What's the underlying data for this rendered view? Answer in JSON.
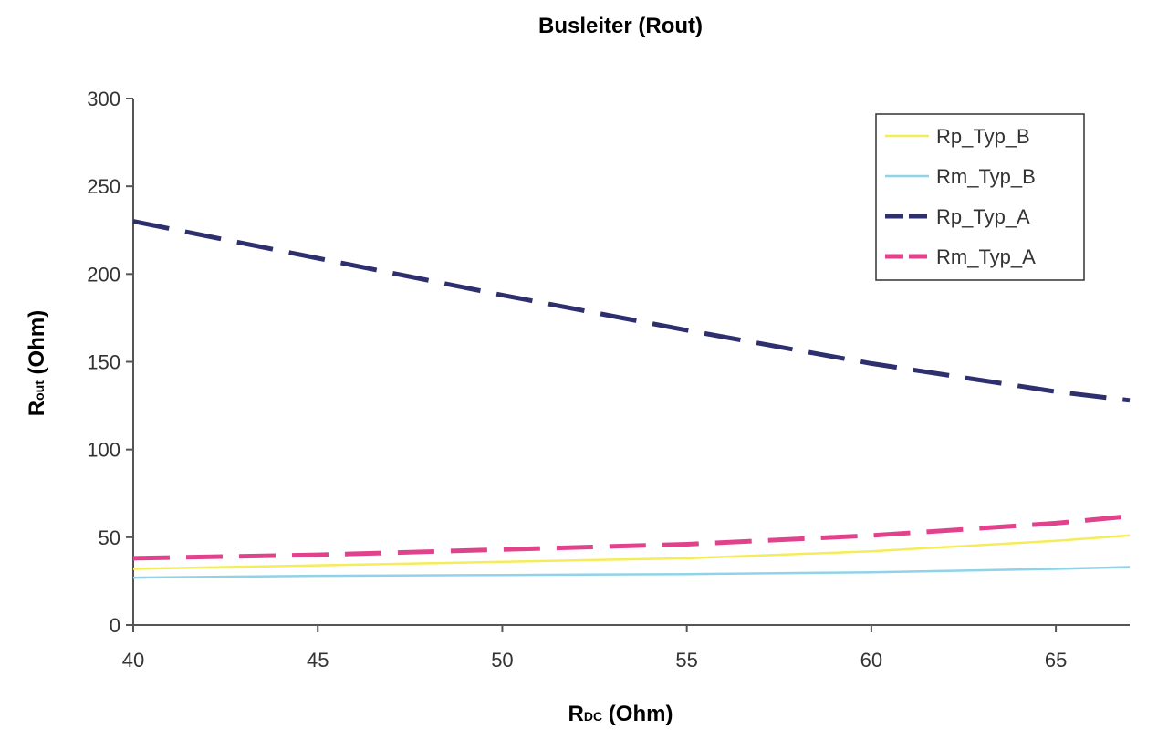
{
  "chart_data": {
    "type": "line",
    "title": "Busleiter (Rout)",
    "xlabel": {
      "main": "R",
      "sub": "DC",
      "rest": " (Ohm)"
    },
    "ylabel": {
      "main": "R",
      "sub": "out",
      "rest": " (Ohm)"
    },
    "xlim": [
      40,
      67
    ],
    "ylim": [
      0,
      300
    ],
    "x_ticks": [
      40,
      45,
      50,
      55,
      60,
      65
    ],
    "y_ticks": [
      0,
      50,
      100,
      150,
      200,
      250,
      300
    ],
    "grid": false,
    "legend_position": "top-right",
    "series": [
      {
        "name": "Rp_Typ_B",
        "color": "#f5ec5a",
        "style": "solid",
        "x": [
          40,
          45,
          50,
          55,
          60,
          65,
          67
        ],
        "y": [
          32,
          34,
          36,
          38,
          42,
          48,
          51
        ]
      },
      {
        "name": "Rm_Typ_B",
        "color": "#8fd3e8",
        "style": "solid",
        "x": [
          40,
          45,
          50,
          55,
          60,
          65,
          67
        ],
        "y": [
          27,
          28,
          28.5,
          29,
          30,
          32,
          33
        ]
      },
      {
        "name": "Rp_Typ_A",
        "color": "#2e2f6e",
        "style": "dashed",
        "x": [
          40,
          45,
          50,
          55,
          60,
          65,
          67
        ],
        "y": [
          230,
          209,
          188,
          168,
          149,
          133,
          128
        ]
      },
      {
        "name": "Rm_Typ_A",
        "color": "#e0438c",
        "style": "dashed",
        "x": [
          40,
          45,
          50,
          55,
          60,
          65,
          67
        ],
        "y": [
          38,
          40,
          43,
          46,
          51,
          58,
          62
        ]
      }
    ]
  }
}
